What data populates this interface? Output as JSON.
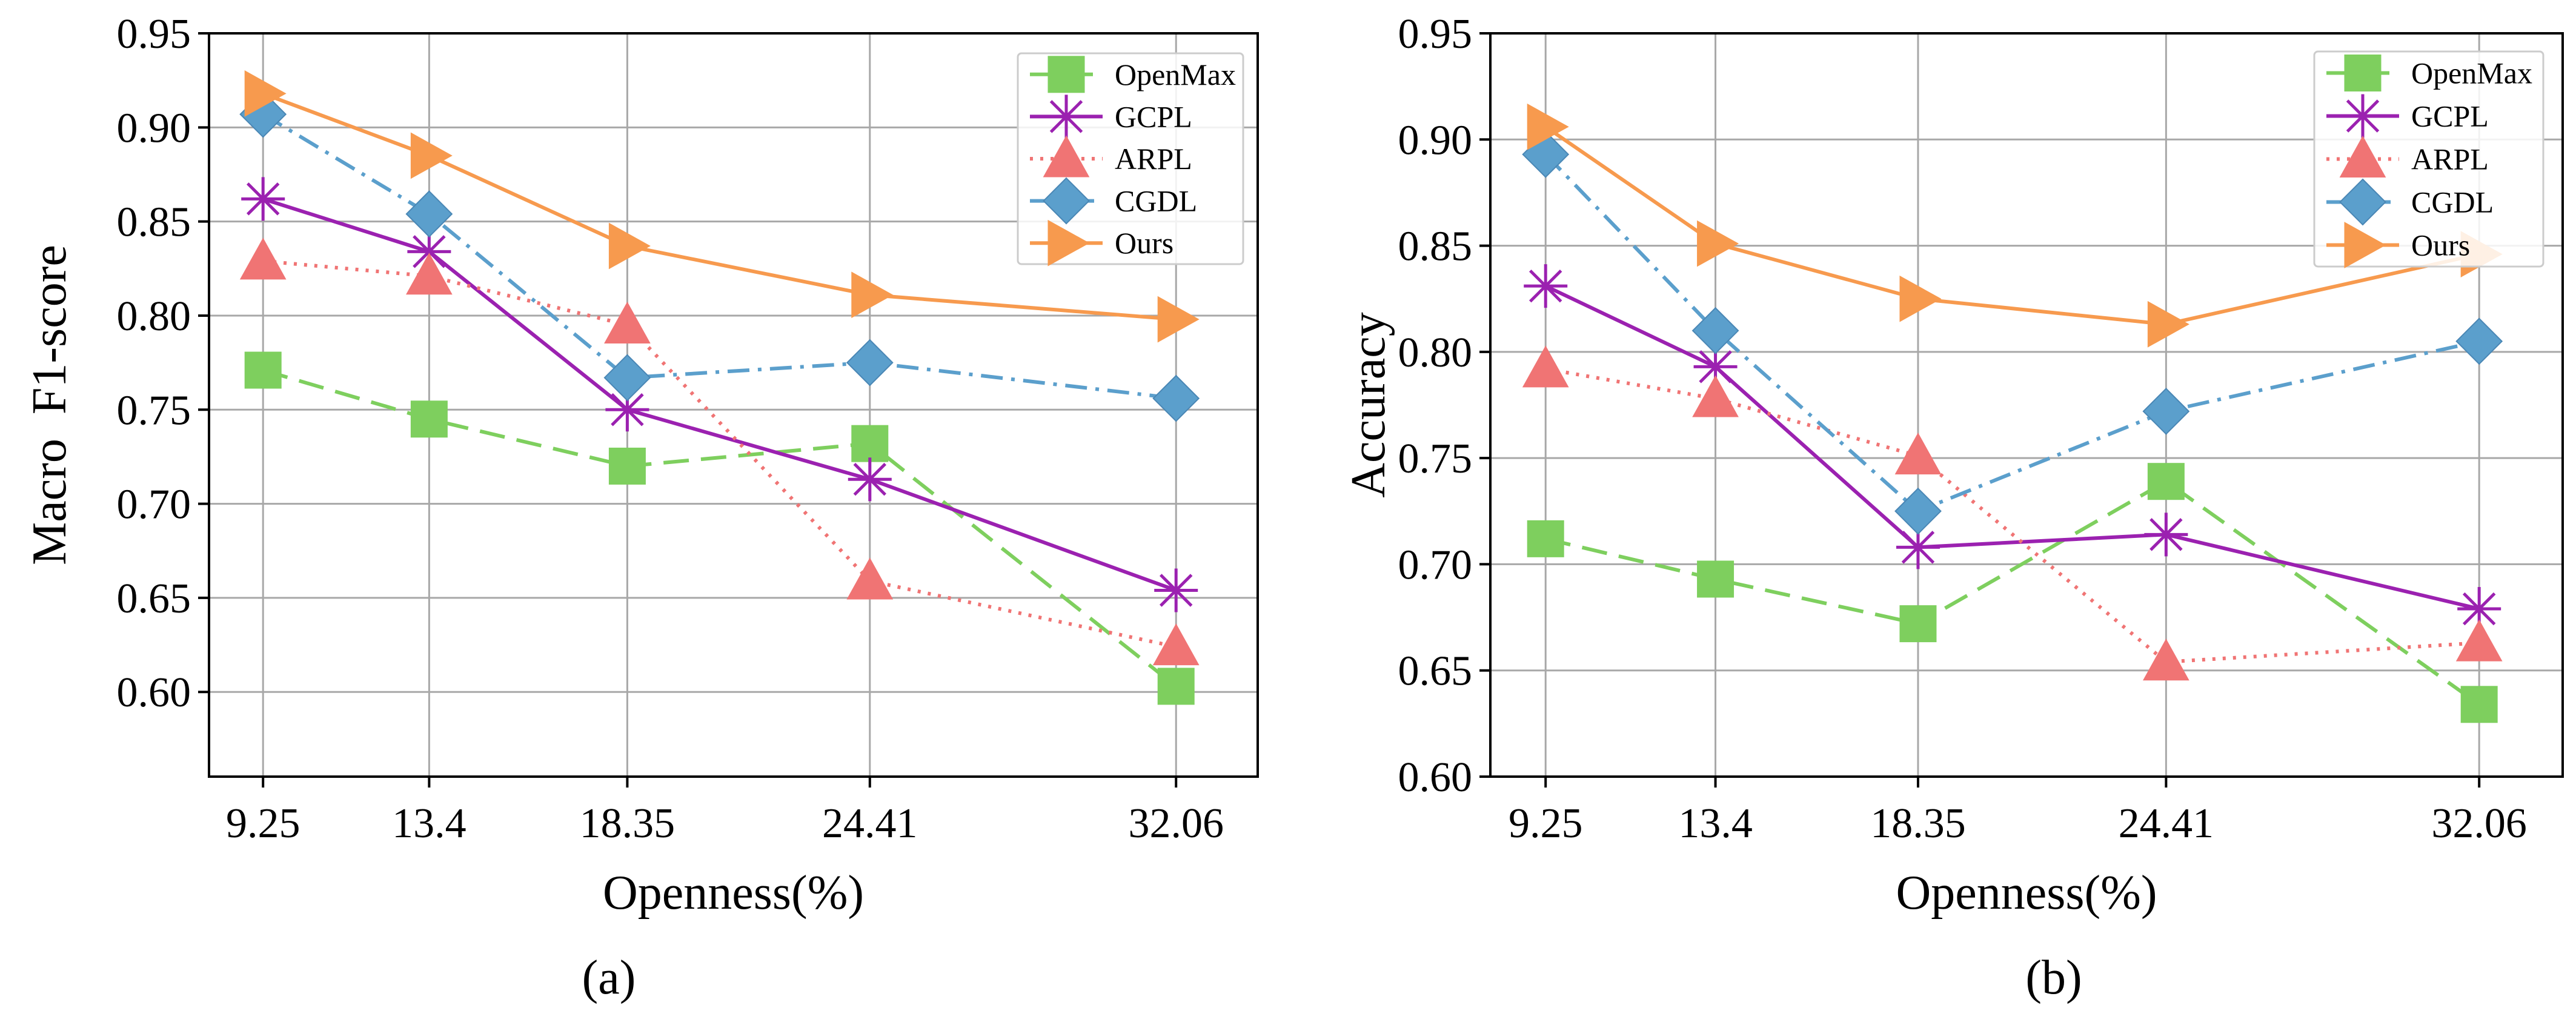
{
  "chart_data": [
    {
      "type": "line",
      "caption": "(a)",
      "xlabel": "Openness(%)",
      "ylabel": "Macro  F1-score",
      "x": [
        9.25,
        13.4,
        18.35,
        24.41,
        32.06
      ],
      "xticks": [
        "9.25",
        "13.4",
        "18.35",
        "24.41",
        "32.06"
      ],
      "xlim": [
        7.9,
        34.1
      ],
      "ylim": [
        0.555,
        0.95
      ],
      "yticks": [
        "0.60",
        "0.65",
        "0.70",
        "0.75",
        "0.80",
        "0.85",
        "0.90",
        "0.95"
      ],
      "ytick_values": [
        0.6,
        0.65,
        0.7,
        0.75,
        0.8,
        0.85,
        0.9,
        0.95
      ],
      "grid": true,
      "legend": "top-right",
      "series": [
        {
          "name": "OpenMax",
          "values": [
            0.771,
            0.745,
            0.72,
            0.732,
            0.603
          ]
        },
        {
          "name": "GCPL",
          "values": [
            0.862,
            0.834,
            0.75,
            0.713,
            0.654
          ]
        },
        {
          "name": "ARPL",
          "values": [
            0.829,
            0.821,
            0.795,
            0.659,
            0.624
          ]
        },
        {
          "name": "CGDL",
          "values": [
            0.907,
            0.854,
            0.767,
            0.775,
            0.756
          ]
        },
        {
          "name": "Ours",
          "values": [
            0.918,
            0.885,
            0.837,
            0.811,
            0.798
          ]
        }
      ]
    },
    {
      "type": "line",
      "caption": "(b)",
      "xlabel": "Openness(%)",
      "ylabel": "Accuracy",
      "x": [
        9.25,
        13.4,
        18.35,
        24.41,
        32.06
      ],
      "xticks": [
        "9.25",
        "13.4",
        "18.35",
        "24.41",
        "32.06"
      ],
      "xlim": [
        7.9,
        34.1
      ],
      "ylim": [
        0.6,
        0.95
      ],
      "yticks": [
        "0.60",
        "0.65",
        "0.70",
        "0.75",
        "0.80",
        "0.85",
        "0.90",
        "0.95"
      ],
      "ytick_values": [
        0.6,
        0.65,
        0.7,
        0.75,
        0.8,
        0.85,
        0.9,
        0.95
      ],
      "grid": true,
      "legend": "top-right",
      "series": [
        {
          "name": "OpenMax",
          "values": [
            0.712,
            0.693,
            0.672,
            0.739,
            0.634
          ]
        },
        {
          "name": "GCPL",
          "values": [
            0.831,
            0.793,
            0.708,
            0.714,
            0.679
          ]
        },
        {
          "name": "ARPL",
          "values": [
            0.792,
            0.778,
            0.751,
            0.654,
            0.663
          ]
        },
        {
          "name": "CGDL",
          "values": [
            0.893,
            0.81,
            0.725,
            0.772,
            0.805
          ]
        },
        {
          "name": "Ours",
          "values": [
            0.906,
            0.851,
            0.825,
            0.813,
            0.846
          ]
        }
      ]
    }
  ],
  "series_styles": {
    "OpenMax": {
      "color": "#7ecf5e",
      "dash": "42 20",
      "marker": "square"
    },
    "GCPL": {
      "color": "#9b21b0",
      "dash": "",
      "marker": "asterisk"
    },
    "ARPL": {
      "color": "#f07474",
      "dash": "5 12",
      "marker": "triangle-up"
    },
    "CGDL": {
      "color": "#5b9fcc",
      "dash": "36 14 6 14",
      "marker": "diamond"
    },
    "Ours": {
      "color": "#f79a4e",
      "dash": "",
      "marker": "triangle-right"
    }
  }
}
